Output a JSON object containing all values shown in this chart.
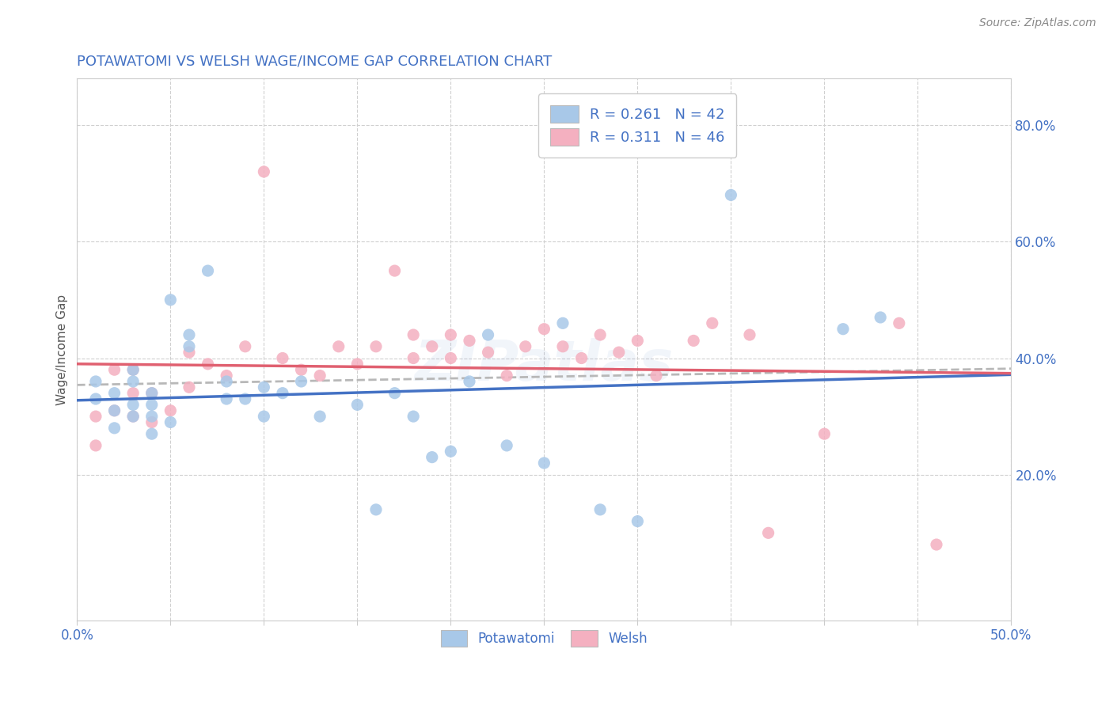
{
  "title": "POTAWATOMI VS WELSH WAGE/INCOME GAP CORRELATION CHART",
  "source": "Source: ZipAtlas.com",
  "ylabel": "Wage/Income Gap",
  "xlim": [
    0.0,
    0.5
  ],
  "ylim": [
    -0.05,
    0.88
  ],
  "xticks": [
    0.0,
    0.05,
    0.1,
    0.15,
    0.2,
    0.25,
    0.3,
    0.35,
    0.4,
    0.45,
    0.5
  ],
  "yticks_right": [
    0.2,
    0.4,
    0.6,
    0.8
  ],
  "title_color": "#4472c4",
  "title_fontsize": 13,
  "watermark": "ZIPatlas",
  "potawatomi_color": "#a8c8e8",
  "welsh_color": "#f4b0c0",
  "potawatomi_line_color": "#4472c4",
  "welsh_line_color": "#e06070",
  "dashed_line_color": "#b8b8b8",
  "potawatomi_x": [
    0.01,
    0.01,
    0.02,
    0.02,
    0.02,
    0.03,
    0.03,
    0.03,
    0.03,
    0.04,
    0.04,
    0.04,
    0.04,
    0.05,
    0.05,
    0.06,
    0.06,
    0.07,
    0.08,
    0.08,
    0.09,
    0.1,
    0.1,
    0.11,
    0.12,
    0.13,
    0.15,
    0.16,
    0.17,
    0.18,
    0.19,
    0.2,
    0.21,
    0.22,
    0.23,
    0.25,
    0.26,
    0.28,
    0.3,
    0.35,
    0.41,
    0.43
  ],
  "potawatomi_y": [
    0.33,
    0.36,
    0.28,
    0.31,
    0.34,
    0.3,
    0.32,
    0.36,
    0.38,
    0.27,
    0.3,
    0.32,
    0.34,
    0.29,
    0.5,
    0.42,
    0.44,
    0.55,
    0.33,
    0.36,
    0.33,
    0.3,
    0.35,
    0.34,
    0.36,
    0.3,
    0.32,
    0.14,
    0.34,
    0.3,
    0.23,
    0.24,
    0.36,
    0.44,
    0.25,
    0.22,
    0.46,
    0.14,
    0.12,
    0.68,
    0.45,
    0.47
  ],
  "welsh_x": [
    0.01,
    0.01,
    0.02,
    0.02,
    0.03,
    0.03,
    0.03,
    0.04,
    0.04,
    0.05,
    0.06,
    0.06,
    0.07,
    0.08,
    0.09,
    0.1,
    0.11,
    0.12,
    0.13,
    0.14,
    0.15,
    0.16,
    0.17,
    0.18,
    0.18,
    0.19,
    0.2,
    0.2,
    0.21,
    0.22,
    0.23,
    0.24,
    0.25,
    0.26,
    0.27,
    0.28,
    0.29,
    0.3,
    0.31,
    0.33,
    0.34,
    0.36,
    0.37,
    0.4,
    0.44,
    0.46
  ],
  "welsh_y": [
    0.25,
    0.3,
    0.31,
    0.38,
    0.3,
    0.34,
    0.38,
    0.29,
    0.34,
    0.31,
    0.35,
    0.41,
    0.39,
    0.37,
    0.42,
    0.72,
    0.4,
    0.38,
    0.37,
    0.42,
    0.39,
    0.42,
    0.55,
    0.4,
    0.44,
    0.42,
    0.4,
    0.44,
    0.43,
    0.41,
    0.37,
    0.42,
    0.45,
    0.42,
    0.4,
    0.44,
    0.41,
    0.43,
    0.37,
    0.43,
    0.46,
    0.44,
    0.1,
    0.27,
    0.46,
    0.08
  ]
}
